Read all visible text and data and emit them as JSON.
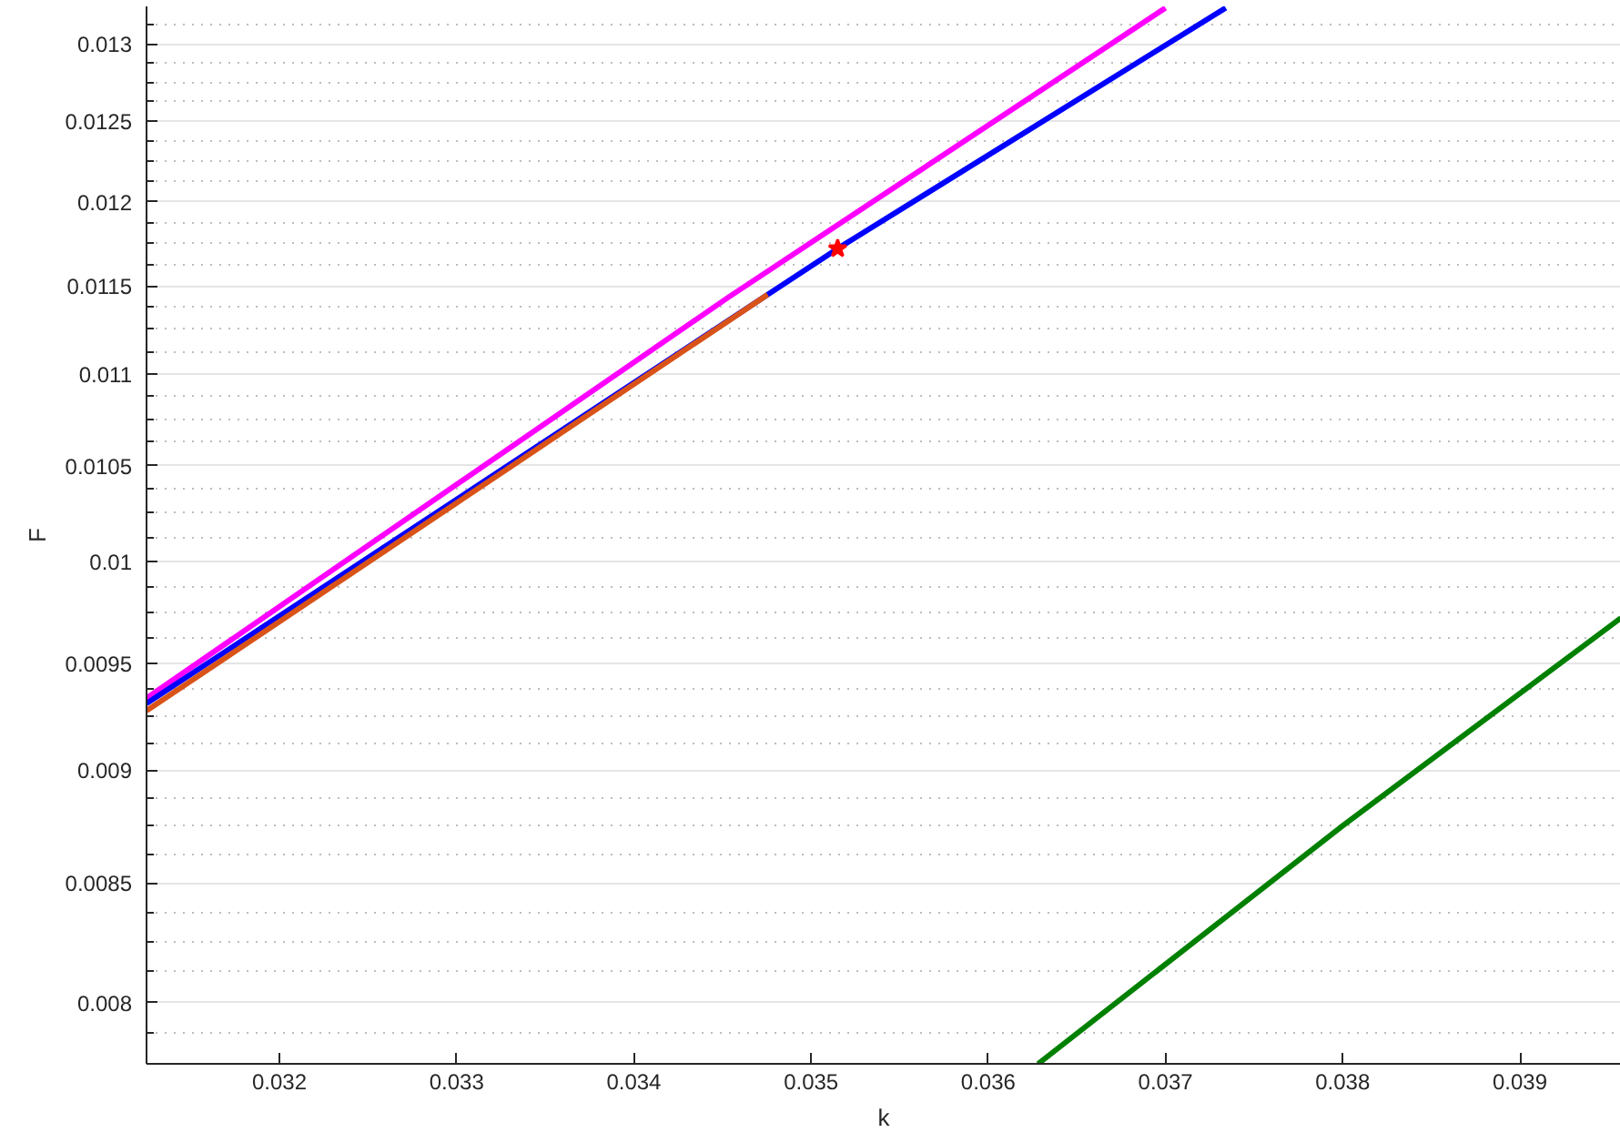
{
  "chart_data": {
    "type": "line",
    "xlabel": "k",
    "ylabel": "F",
    "log": "y",
    "grid": "y",
    "line_style": "solid",
    "marker": "none",
    "xlim": [
      0.03125,
      0.03957
    ],
    "ylim": [
      0.007755,
      0.01325
    ],
    "xticks": [
      0.032,
      0.033,
      0.034,
      0.035,
      0.036,
      0.037,
      0.038,
      0.039
    ],
    "yticks": [
      {
        "value": 0.007875,
        "label": null
      },
      0.008,
      {
        "value": 0.008125,
        "label": null
      },
      {
        "value": 0.00825,
        "label": null
      },
      {
        "value": 0.008375,
        "label": null
      },
      0.0085,
      {
        "value": 0.008625,
        "label": null
      },
      {
        "value": 0.00875,
        "label": null
      },
      {
        "value": 0.008875,
        "label": null
      },
      0.009,
      {
        "value": 0.009125,
        "label": null
      },
      {
        "value": 0.00925,
        "label": null
      },
      {
        "value": 0.009375,
        "label": null
      },
      0.0095,
      {
        "value": 0.009625,
        "label": null
      },
      {
        "value": 0.00975,
        "label": null
      },
      {
        "value": 0.009875,
        "label": null
      },
      0.01,
      {
        "value": 0.010125,
        "label": null
      },
      {
        "value": 0.01025,
        "label": null
      },
      {
        "value": 0.010375,
        "label": null
      },
      0.0105,
      {
        "value": 0.010625,
        "label": null
      },
      {
        "value": 0.01075,
        "label": null
      },
      {
        "value": 0.010875,
        "label": null
      },
      0.011,
      {
        "value": 0.011125,
        "label": null
      },
      {
        "value": 0.01125,
        "label": null
      },
      {
        "value": 0.011375,
        "label": null
      },
      0.0115,
      {
        "value": 0.011625,
        "label": null
      },
      {
        "value": 0.01175,
        "label": null
      },
      {
        "value": 0.011875,
        "label": null
      },
      0.012,
      {
        "value": 0.012125,
        "label": null
      },
      {
        "value": 0.01225,
        "label": null
      },
      {
        "value": 0.012375,
        "label": null
      },
      0.0125,
      {
        "value": 0.012625,
        "label": null
      },
      {
        "value": 0.01275,
        "label": null
      },
      {
        "value": 0.012875,
        "label": null
      },
      0.013,
      {
        "value": 0.013125,
        "label": null
      }
    ],
    "series": [
      {
        "color": "#ff00ff",
        "x": [
          0.03125,
          0.03453,
          0.037
        ],
        "values": [
          0.009333,
          0.011432,
          0.01324
        ]
      },
      {
        "color": "#0000ff",
        "x": [
          0.03125,
          0.034755,
          0.03515,
          0.03734
        ],
        "values": [
          0.009308,
          0.01145,
          0.01172,
          0.01324
        ]
      },
      {
        "color": "#d95319",
        "x": [
          0.03125,
          0.034755
        ],
        "values": [
          0.009274,
          0.01145
        ]
      },
      {
        "color": "#008000",
        "x": [
          0.036281,
          0.038,
          0.03957
        ],
        "values": [
          0.007755,
          0.008749,
          0.00972
        ]
      },
      {
        "type": "scatter",
        "marker": "star",
        "color": "#ff0000",
        "x": [
          0.03515
        ],
        "values": [
          0.01172
        ]
      }
    ]
  }
}
